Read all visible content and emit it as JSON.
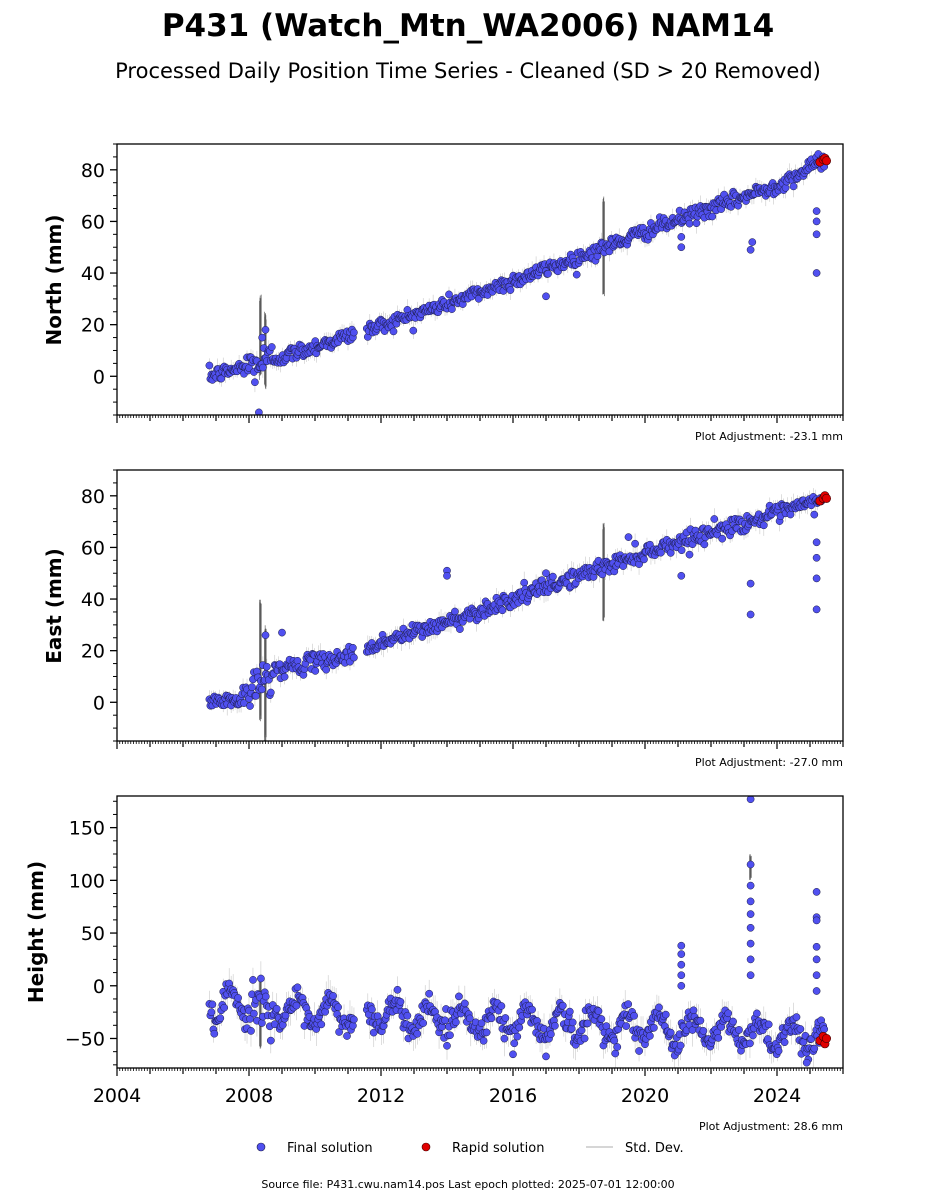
{
  "title": "P431 (Watch_Mtn_WA2006) NAM14",
  "subtitle": "Processed Daily Position Time Series - Cleaned (SD > 20 Removed)",
  "source_text": "Source file: P431.cwu.nam14.pos  Last epoch plotted: 2025-07-01 12:00:00",
  "legend": {
    "final": "Final solution",
    "rapid": "Rapid solution",
    "std": "Std. Dev."
  },
  "colors": {
    "final_fill": "#5050f0",
    "final_edge": "#1a1a40",
    "rapid_fill": "#e00000",
    "std_line": "#9a9a9a"
  },
  "chart_data": [
    {
      "type": "scatter",
      "ylabel": "North (mm)",
      "adjustment": "Plot Adjustment: -23.1 mm",
      "xlim": [
        2004,
        2026
      ],
      "ylim": [
        -15,
        90
      ],
      "yticks": [
        0,
        20,
        40,
        60,
        80
      ],
      "trend": [
        [
          2006.8,
          0
        ],
        [
          2008.0,
          4
        ],
        [
          2008.6,
          6
        ],
        [
          2011.6,
          18
        ],
        [
          2014.0,
          28
        ],
        [
          2016.0,
          37
        ],
        [
          2018.0,
          46
        ],
        [
          2020.0,
          56
        ],
        [
          2022.0,
          65
        ],
        [
          2024.0,
          74
        ],
        [
          2025.5,
          84
        ]
      ],
      "noise": 1.5,
      "outliers": [
        [
          2008.3,
          -14
        ],
        [
          2008.5,
          18
        ],
        [
          2008.4,
          15
        ],
        [
          2017.0,
          31
        ],
        [
          2021.1,
          50
        ],
        [
          2021.1,
          54
        ],
        [
          2023.2,
          49
        ],
        [
          2023.25,
          52
        ],
        [
          2025.2,
          40
        ],
        [
          2025.2,
          55
        ],
        [
          2025.2,
          60
        ],
        [
          2025.2,
          64
        ]
      ],
      "gaps": [
        [
          2011.2,
          2011.55
        ]
      ],
      "std_spikes": [
        [
          2008.35,
          -2,
          32
        ],
        [
          2008.5,
          -5,
          25
        ],
        [
          2018.75,
          30,
          70
        ]
      ],
      "rapid": [
        [
          2025.3,
          83
        ],
        [
          2025.4,
          84
        ],
        [
          2025.45,
          84.5
        ],
        [
          2025.5,
          83.5
        ]
      ]
    },
    {
      "type": "scatter",
      "ylabel": "East (mm)",
      "adjustment": "Plot Adjustment: -27.0 mm",
      "xlim": [
        2004,
        2026
      ],
      "ylim": [
        -15,
        90
      ],
      "yticks": [
        0,
        20,
        40,
        60,
        80
      ],
      "trend": [
        [
          2006.8,
          0
        ],
        [
          2007.8,
          1
        ],
        [
          2008.2,
          5
        ],
        [
          2008.6,
          12
        ],
        [
          2011.0,
          18
        ],
        [
          2012.0,
          23
        ],
        [
          2014.0,
          31
        ],
        [
          2016.0,
          40
        ],
        [
          2018.0,
          49
        ],
        [
          2020.0,
          58
        ],
        [
          2022.0,
          66
        ],
        [
          2024.0,
          73
        ],
        [
          2025.5,
          79
        ]
      ],
      "noise": 1.6,
      "outliers": [
        [
          2008.5,
          26
        ],
        [
          2009.0,
          27
        ],
        [
          2014.0,
          51
        ],
        [
          2014.0,
          49
        ],
        [
          2017.0,
          50
        ],
        [
          2019.5,
          64
        ],
        [
          2021.1,
          49
        ],
        [
          2023.2,
          34
        ],
        [
          2023.2,
          46
        ],
        [
          2025.2,
          36
        ],
        [
          2025.2,
          48
        ],
        [
          2025.2,
          56
        ],
        [
          2025.2,
          62
        ]
      ],
      "gaps": [
        [
          2011.2,
          2011.55
        ]
      ],
      "std_spikes": [
        [
          2008.35,
          -8,
          40
        ],
        [
          2008.5,
          -15,
          30
        ],
        [
          2018.75,
          30,
          70
        ]
      ],
      "rapid": [
        [
          2025.3,
          78
        ],
        [
          2025.4,
          79
        ],
        [
          2025.45,
          80
        ],
        [
          2025.5,
          79
        ]
      ]
    },
    {
      "type": "scatter",
      "ylabel": "Height (mm)",
      "adjustment": "Plot Adjustment: 28.6 mm",
      "xlabel": "",
      "xlim": [
        2004,
        2026
      ],
      "ylim": [
        -78,
        180
      ],
      "yticks": [
        -50,
        0,
        50,
        100,
        150
      ],
      "xticks": [
        2004,
        2008,
        2012,
        2016,
        2020,
        2024
      ],
      "trend": [
        [
          2006.8,
          -20
        ],
        [
          2025.5,
          -48
        ]
      ],
      "seasonal_amplitude": 12,
      "noise": 6,
      "outliers": [
        [
          2016.0,
          -65
        ],
        [
          2017.0,
          -67
        ],
        [
          2021.1,
          38
        ],
        [
          2021.1,
          30
        ],
        [
          2021.1,
          20
        ],
        [
          2021.1,
          10
        ],
        [
          2021.1,
          0
        ],
        [
          2023.2,
          177
        ],
        [
          2023.2,
          115
        ],
        [
          2023.2,
          95
        ],
        [
          2023.2,
          80
        ],
        [
          2023.2,
          68
        ],
        [
          2023.2,
          55
        ],
        [
          2023.2,
          40
        ],
        [
          2023.2,
          25
        ],
        [
          2023.2,
          10
        ],
        [
          2025.2,
          89
        ],
        [
          2025.2,
          65
        ],
        [
          2025.2,
          62
        ],
        [
          2025.2,
          37
        ],
        [
          2025.2,
          25
        ],
        [
          2025.2,
          10
        ],
        [
          2025.2,
          -5
        ],
        [
          2024.9,
          -73
        ]
      ],
      "gaps": [
        [
          2011.2,
          2011.55
        ]
      ],
      "std_spikes": [
        [
          2008.35,
          -60,
          10
        ],
        [
          2023.2,
          100,
          125
        ]
      ],
      "rapid": [
        [
          2025.3,
          -52
        ],
        [
          2025.4,
          -48
        ],
        [
          2025.45,
          -55
        ],
        [
          2025.5,
          -50
        ]
      ]
    }
  ]
}
